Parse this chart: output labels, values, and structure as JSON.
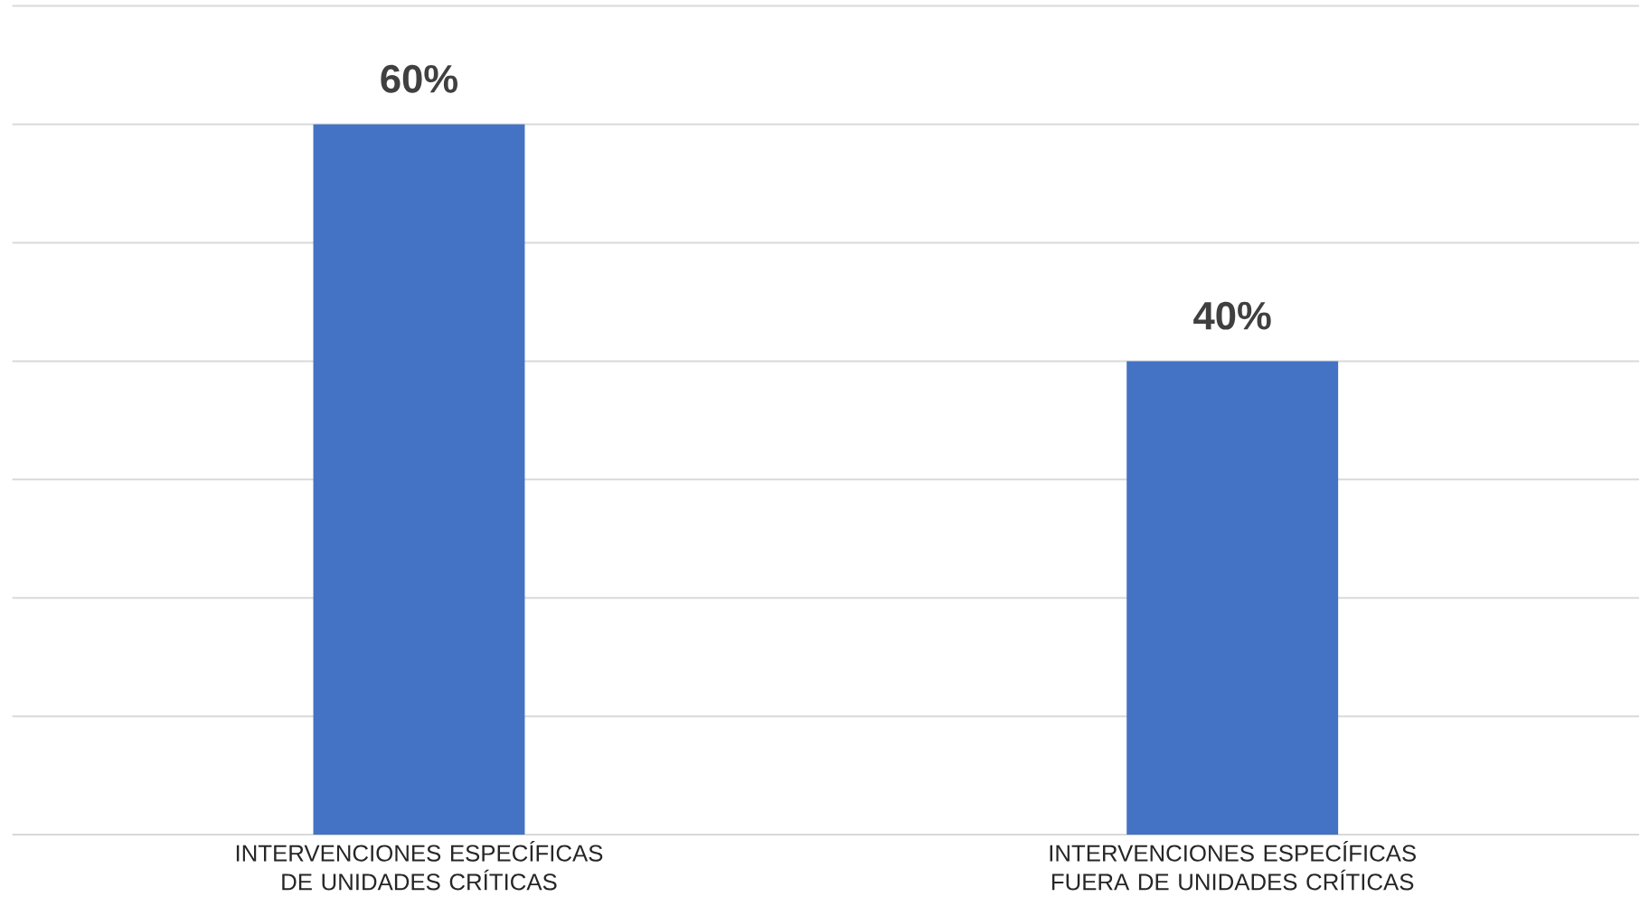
{
  "chart_data": {
    "type": "bar",
    "categories": [
      "INTERVENCIONES ESPECÍFICAS DE UNIDADES CRÍTICAS",
      "INTERVENCIONES ESPECÍFICAS FUERA DE UNIDADES CRÍTICAS"
    ],
    "values": [
      60,
      40
    ],
    "value_labels": [
      "60%",
      "40%"
    ],
    "color": "#4472c4",
    "ylim": [
      0,
      70
    ],
    "yticks": [
      {
        "value": 0,
        "label": null
      },
      {
        "value": 10,
        "label": null
      },
      {
        "value": 20,
        "label": null
      },
      {
        "value": 30,
        "label": null
      },
      {
        "value": 40,
        "label": null
      },
      {
        "value": 50,
        "label": null
      },
      {
        "value": 60,
        "label": null
      },
      {
        "value": 70,
        "label": null
      }
    ],
    "grid": "y",
    "tick_labels": "x"
  }
}
